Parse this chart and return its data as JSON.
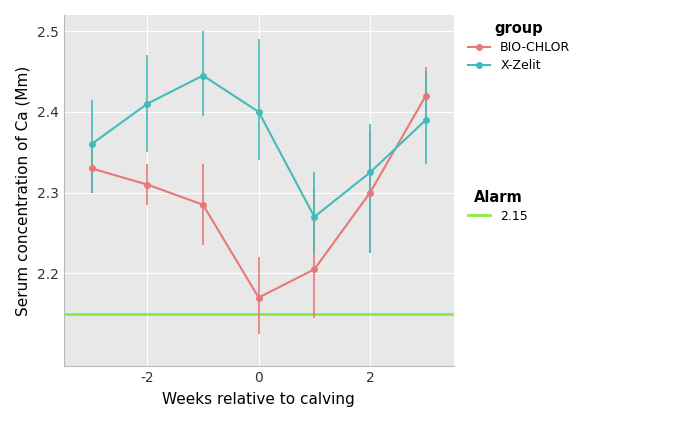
{
  "bio_chlor_x": [
    -3,
    -2,
    -1,
    0,
    1,
    2,
    3
  ],
  "bio_chlor_y": [
    2.33,
    2.31,
    2.285,
    2.17,
    2.205,
    2.3,
    2.42
  ],
  "bio_chlor_yerr_upper": [
    0.03,
    0.025,
    0.05,
    0.05,
    0.1,
    0.075,
    0.035
  ],
  "bio_chlor_yerr_lower": [
    0.03,
    0.025,
    0.05,
    0.045,
    0.06,
    0.075,
    0.035
  ],
  "xzelit_x": [
    -3,
    -2,
    -1,
    0,
    1,
    2,
    3
  ],
  "xzelit_y": [
    2.36,
    2.41,
    2.445,
    2.4,
    2.27,
    2.325,
    2.39
  ],
  "xzelit_yerr_upper": [
    0.055,
    0.06,
    0.055,
    0.09,
    0.055,
    0.06,
    0.06
  ],
  "xzelit_yerr_lower": [
    0.06,
    0.06,
    0.05,
    0.06,
    0.045,
    0.1,
    0.055
  ],
  "alarm_y": 2.15,
  "bio_chlor_color": "#E87878",
  "xzelit_color": "#44BBBB",
  "alarm_color": "#88EE44",
  "xlabel": "Weeks relative to calving",
  "ylabel": "Serum concentration of Ca (Mm)",
  "ylim_min": 2.085,
  "ylim_max": 2.52,
  "yticks": [
    2.2,
    2.3,
    2.4,
    2.5
  ],
  "xticks": [
    -2,
    0,
    2
  ],
  "xticklabels": [
    "-2",
    "0",
    "2"
  ],
  "xlim_min": -3.5,
  "xlim_max": 3.5,
  "bg_color": "#E8E8E8",
  "fig_bg_color": "#FFFFFF",
  "grid_color": "#FFFFFF",
  "legend_group_title": "group",
  "legend_alarm_title": "Alarm",
  "legend_bio_chlor": "BIO-CHLOR",
  "legend_xzelit": "X-Zelit",
  "legend_alarm_label": "2.15"
}
